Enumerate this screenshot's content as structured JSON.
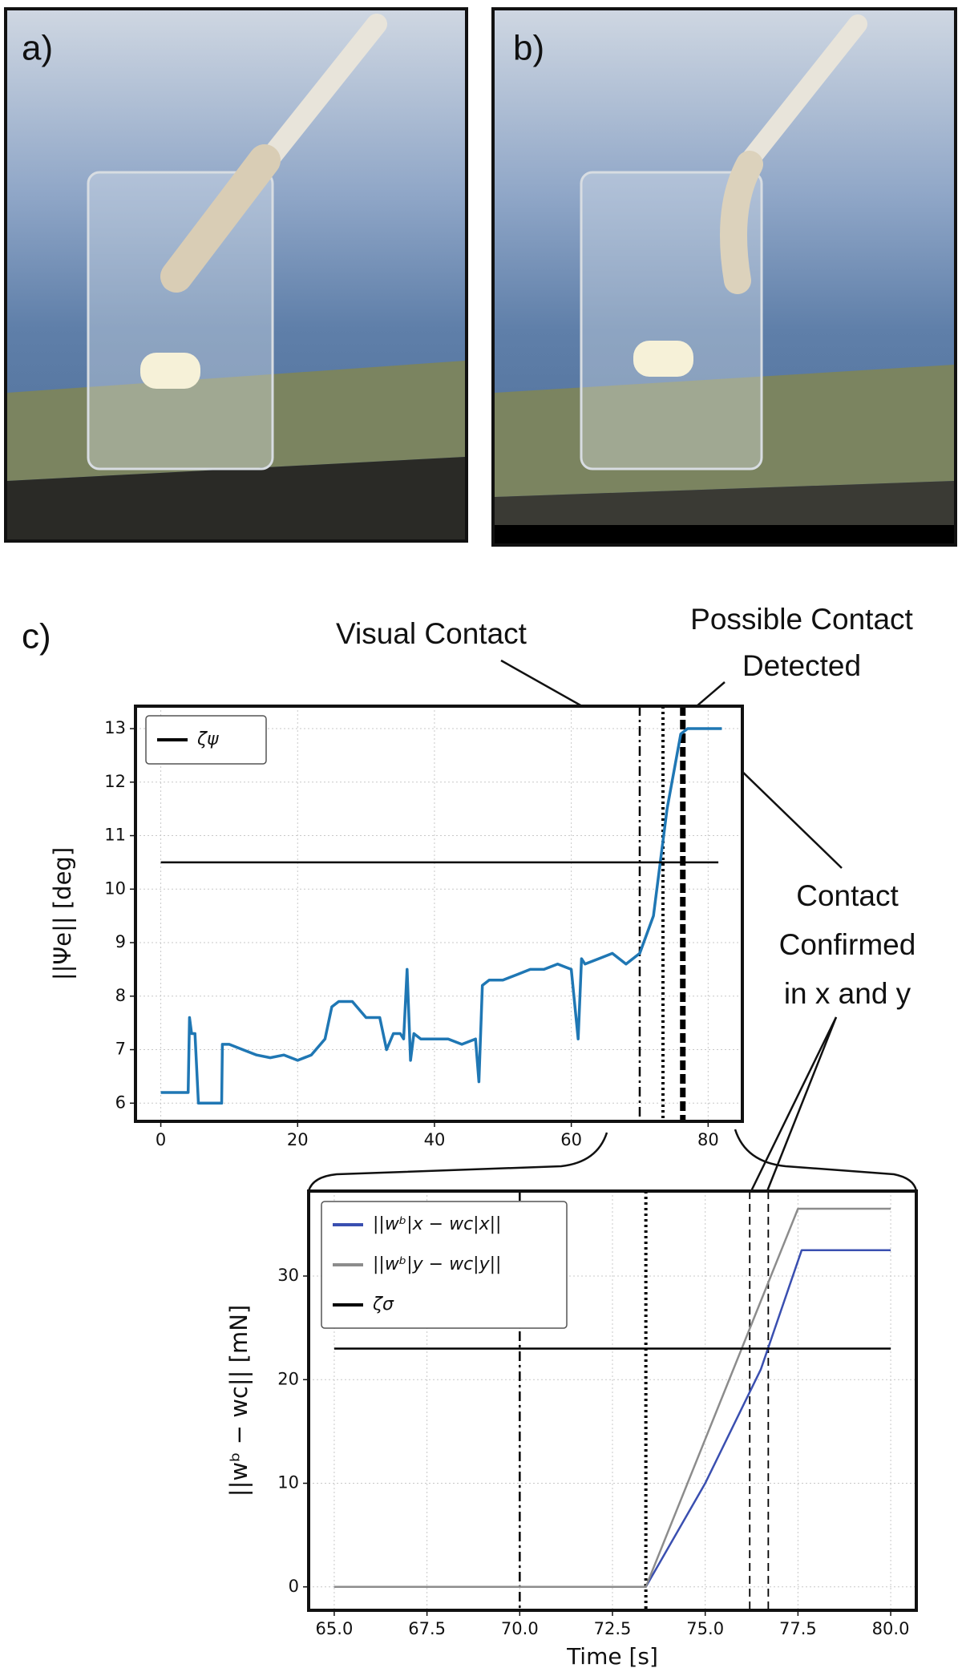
{
  "panel_labels": [
    "a)",
    "b)",
    "c)"
  ],
  "chart_data": [
    {
      "type": "line",
      "ylabel": "||Ψe|| [deg]",
      "xlim": [
        -3.7,
        85
      ],
      "ylim": [
        5.66,
        13.42
      ],
      "xticks": [
        0,
        20,
        40,
        60,
        80
      ],
      "yticks": [
        6,
        7,
        8,
        9,
        10,
        11,
        12,
        13
      ],
      "grid": true,
      "legend": "upper left",
      "series": [
        {
          "color": "#1f77b4",
          "x": [
            0,
            4,
            4.2,
            4.5,
            5,
            5.5,
            6,
            8.9,
            9,
            10,
            12,
            14,
            16,
            18,
            20,
            22,
            24,
            25,
            26,
            28,
            30,
            32,
            33,
            34,
            35,
            35.5,
            36,
            36.5,
            37,
            38,
            40,
            42,
            44,
            46,
            46.5,
            47,
            48,
            50,
            52,
            54,
            56,
            58,
            60,
            61,
            61.5,
            62,
            64,
            66,
            68,
            70,
            72,
            74,
            76,
            77,
            78,
            80,
            82
          ],
          "values": [
            6.2,
            6.2,
            7.6,
            7.3,
            7.3,
            6.0,
            6.0,
            6.0,
            7.1,
            7.1,
            7.0,
            6.9,
            6.85,
            6.9,
            6.8,
            6.9,
            7.2,
            7.8,
            7.9,
            7.9,
            7.6,
            7.6,
            7.0,
            7.3,
            7.3,
            7.2,
            8.5,
            6.8,
            7.3,
            7.2,
            7.2,
            7.2,
            7.1,
            7.2,
            6.4,
            8.2,
            8.3,
            8.3,
            8.4,
            8.5,
            8.5,
            8.6,
            8.5,
            7.2,
            8.7,
            8.6,
            8.7,
            8.8,
            8.6,
            8.8,
            9.5,
            11.5,
            12.9,
            13.0,
            13.0,
            13.0,
            13.0
          ]
        },
        {
          "name": "ζψ",
          "color": "#000000",
          "x": [
            0,
            81.5
          ],
          "values": [
            10.5,
            10.5
          ]
        }
      ],
      "events": [
        {
          "x": 70,
          "style": "dashdot"
        },
        {
          "x": 73.4,
          "style": "dotted"
        },
        {
          "x": 76.3,
          "style": "thickdash"
        }
      ],
      "annotations": [
        {
          "text": [
            "Visual Contact"
          ]
        },
        {
          "text": [
            "Possible Contact",
            "Detected"
          ]
        },
        {
          "text": [
            "Contact",
            "Confirmed",
            "in x and y"
          ]
        }
      ]
    },
    {
      "type": "line",
      "xlabel": "Time [s]",
      "ylabel": "||wᵇ − wc|| [mN]",
      "xlim": [
        64.31,
        80.69
      ],
      "ylim": [
        -2.26,
        38.2
      ],
      "xticks": [
        {
          "value": 65,
          "label": "65.0"
        },
        {
          "value": 67.5,
          "label": "67.5"
        },
        {
          "value": 70,
          "label": "70.0"
        },
        {
          "value": 72.5,
          "label": "72.5"
        },
        {
          "value": 75,
          "label": "75.0"
        },
        {
          "value": 77.5,
          "label": "77.5"
        },
        {
          "value": 80,
          "label": "80.0"
        }
      ],
      "yticks": [
        0,
        10,
        20,
        30
      ],
      "grid": true,
      "legend": "upper left",
      "series": [
        {
          "name": "||wᵇ|x − wc|x||",
          "color": "#3a4fb0",
          "x": [
            65,
            73.4,
            75,
            76.5,
            77.6,
            80
          ],
          "values": [
            0,
            0,
            10,
            21,
            32.5,
            32.5
          ]
        },
        {
          "name": "||wᵇ|y − wc|y||",
          "color": "#8c8c8c",
          "x": [
            65,
            73.4,
            77.5,
            80
          ],
          "values": [
            0,
            0,
            36.5,
            36.5
          ]
        },
        {
          "name": "ζσ",
          "color": "#000000",
          "x": [
            65,
            80
          ],
          "values": [
            23,
            23
          ]
        }
      ],
      "events": [
        {
          "x": 70,
          "style": "dashdot"
        },
        {
          "x": 73.4,
          "style": "dotted"
        },
        {
          "x": 76.2,
          "style": "dashed"
        },
        {
          "x": 76.7,
          "style": "dashed"
        }
      ]
    }
  ]
}
